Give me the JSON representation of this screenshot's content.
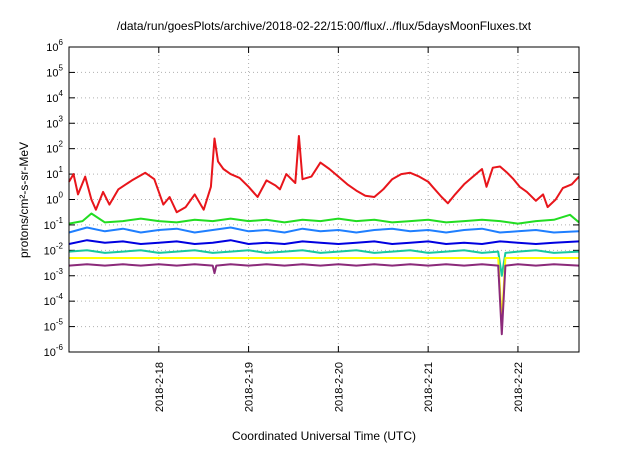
{
  "chart_data": {
    "type": "line",
    "title": "/data/run/goesPlots/archive/2018-02-22/15:00/flux/../flux/5daysMoonFluxes.txt",
    "xlabel": "Coordinated Universal Time (UTC)",
    "ylabel": "protons/cm²-s-sr-MeV",
    "y_scale": "log",
    "ylim_exponents": [
      -6,
      6
    ],
    "ytick_exponents": [
      -6,
      -5,
      -4,
      -3,
      -2,
      -1,
      0,
      1,
      2,
      3,
      4,
      5,
      6
    ],
    "ytick_base": "10",
    "xlim_days": [
      -1.0,
      4.68
    ],
    "x_origin_label": "2018-2-18",
    "xtick_labels": [
      "2018-2-18",
      "2018-2-19",
      "2018-2-20",
      "2018-2-21",
      "2018-2-22"
    ],
    "grid": true,
    "legend": "none",
    "series": [
      {
        "color": "#e8151b",
        "points": [
          [
            -1.0,
            0.7
          ],
          [
            -0.95,
            1.0
          ],
          [
            -0.9,
            0.2
          ],
          [
            -0.82,
            0.9
          ],
          [
            -0.75,
            0.0
          ],
          [
            -0.7,
            -0.4
          ],
          [
            -0.62,
            0.3
          ],
          [
            -0.55,
            -0.2
          ],
          [
            -0.45,
            0.4
          ],
          [
            -0.3,
            0.75
          ],
          [
            -0.15,
            1.05
          ],
          [
            -0.05,
            0.8
          ],
          [
            0.05,
            -0.2
          ],
          [
            0.12,
            0.1
          ],
          [
            0.2,
            -0.5
          ],
          [
            0.3,
            -0.3
          ],
          [
            0.4,
            0.2
          ],
          [
            0.5,
            -0.4
          ],
          [
            0.58,
            0.5
          ],
          [
            0.62,
            2.4
          ],
          [
            0.66,
            1.5
          ],
          [
            0.72,
            1.2
          ],
          [
            0.8,
            1.0
          ],
          [
            0.9,
            0.85
          ],
          [
            1.0,
            0.5
          ],
          [
            1.1,
            0.1
          ],
          [
            1.2,
            0.75
          ],
          [
            1.3,
            0.55
          ],
          [
            1.35,
            0.4
          ],
          [
            1.42,
            1.0
          ],
          [
            1.52,
            0.65
          ],
          [
            1.56,
            2.5
          ],
          [
            1.6,
            0.8
          ],
          [
            1.7,
            0.9
          ],
          [
            1.8,
            1.45
          ],
          [
            1.9,
            1.2
          ],
          [
            2.0,
            0.9
          ],
          [
            2.1,
            0.6
          ],
          [
            2.2,
            0.35
          ],
          [
            2.3,
            0.15
          ],
          [
            2.4,
            0.1
          ],
          [
            2.5,
            0.4
          ],
          [
            2.6,
            0.8
          ],
          [
            2.7,
            1.0
          ],
          [
            2.8,
            1.05
          ],
          [
            2.9,
            0.9
          ],
          [
            3.0,
            0.7
          ],
          [
            3.05,
            0.5
          ],
          [
            3.15,
            0.1
          ],
          [
            3.22,
            -0.15
          ],
          [
            3.3,
            0.2
          ],
          [
            3.4,
            0.6
          ],
          [
            3.5,
            0.9
          ],
          [
            3.6,
            1.2
          ],
          [
            3.65,
            0.5
          ],
          [
            3.72,
            1.25
          ],
          [
            3.8,
            1.3
          ],
          [
            3.88,
            1.05
          ],
          [
            3.95,
            0.8
          ],
          [
            4.02,
            0.5
          ],
          [
            4.1,
            0.3
          ],
          [
            4.2,
            -0.05
          ],
          [
            4.28,
            0.2
          ],
          [
            4.33,
            -0.3
          ],
          [
            4.42,
            0.0
          ],
          [
            4.5,
            0.45
          ],
          [
            4.6,
            0.6
          ],
          [
            4.68,
            0.9
          ]
        ]
      },
      {
        "color": "#22dd22",
        "points": [
          [
            -1.0,
            -0.95
          ],
          [
            -0.85,
            -0.85
          ],
          [
            -0.75,
            -0.55
          ],
          [
            -0.6,
            -0.9
          ],
          [
            -0.4,
            -0.85
          ],
          [
            -0.2,
            -0.75
          ],
          [
            0.0,
            -0.85
          ],
          [
            0.2,
            -0.9
          ],
          [
            0.4,
            -0.8
          ],
          [
            0.6,
            -0.85
          ],
          [
            0.8,
            -0.75
          ],
          [
            1.0,
            -0.85
          ],
          [
            1.2,
            -0.8
          ],
          [
            1.4,
            -0.9
          ],
          [
            1.6,
            -0.8
          ],
          [
            1.8,
            -0.85
          ],
          [
            2.0,
            -0.75
          ],
          [
            2.2,
            -0.85
          ],
          [
            2.4,
            -0.8
          ],
          [
            2.6,
            -0.9
          ],
          [
            2.8,
            -0.85
          ],
          [
            3.0,
            -0.8
          ],
          [
            3.2,
            -0.9
          ],
          [
            3.4,
            -0.85
          ],
          [
            3.6,
            -0.8
          ],
          [
            3.8,
            -0.85
          ],
          [
            4.0,
            -0.95
          ],
          [
            4.2,
            -0.85
          ],
          [
            4.4,
            -0.8
          ],
          [
            4.58,
            -0.6
          ],
          [
            4.68,
            -0.9
          ]
        ]
      },
      {
        "color": "#1f7fff",
        "points": [
          [
            -1.0,
            -1.3
          ],
          [
            -0.8,
            -1.1
          ],
          [
            -0.6,
            -1.25
          ],
          [
            -0.4,
            -1.15
          ],
          [
            -0.2,
            -1.3
          ],
          [
            0.0,
            -1.2
          ],
          [
            0.2,
            -1.15
          ],
          [
            0.4,
            -1.3
          ],
          [
            0.6,
            -1.2
          ],
          [
            0.8,
            -1.1
          ],
          [
            1.0,
            -1.25
          ],
          [
            1.2,
            -1.2
          ],
          [
            1.4,
            -1.3
          ],
          [
            1.6,
            -1.15
          ],
          [
            1.8,
            -1.25
          ],
          [
            2.0,
            -1.2
          ],
          [
            2.2,
            -1.3
          ],
          [
            2.4,
            -1.2
          ],
          [
            2.6,
            -1.15
          ],
          [
            2.8,
            -1.25
          ],
          [
            3.0,
            -1.2
          ],
          [
            3.2,
            -1.3
          ],
          [
            3.4,
            -1.2
          ],
          [
            3.6,
            -1.15
          ],
          [
            3.8,
            -1.3
          ],
          [
            4.0,
            -1.25
          ],
          [
            4.2,
            -1.2
          ],
          [
            4.4,
            -1.3
          ],
          [
            4.68,
            -1.25
          ]
        ]
      },
      {
        "color": "#0000e0",
        "points": [
          [
            -1.0,
            -1.75
          ],
          [
            -0.8,
            -1.6
          ],
          [
            -0.6,
            -1.7
          ],
          [
            -0.4,
            -1.65
          ],
          [
            -0.2,
            -1.75
          ],
          [
            0.0,
            -1.7
          ],
          [
            0.2,
            -1.65
          ],
          [
            0.4,
            -1.75
          ],
          [
            0.6,
            -1.7
          ],
          [
            0.8,
            -1.6
          ],
          [
            1.0,
            -1.75
          ],
          [
            1.2,
            -1.7
          ],
          [
            1.4,
            -1.75
          ],
          [
            1.6,
            -1.65
          ],
          [
            1.8,
            -1.7
          ],
          [
            2.0,
            -1.75
          ],
          [
            2.2,
            -1.7
          ],
          [
            2.4,
            -1.65
          ],
          [
            2.6,
            -1.75
          ],
          [
            2.8,
            -1.7
          ],
          [
            3.0,
            -1.65
          ],
          [
            3.2,
            -1.75
          ],
          [
            3.4,
            -1.7
          ],
          [
            3.6,
            -1.75
          ],
          [
            3.8,
            -1.65
          ],
          [
            4.0,
            -1.7
          ],
          [
            4.2,
            -1.75
          ],
          [
            4.4,
            -1.7
          ],
          [
            4.68,
            -1.65
          ]
        ]
      },
      {
        "color": "#17c9a0",
        "points": [
          [
            -1.0,
            -2.05
          ],
          [
            -0.8,
            -2.0
          ],
          [
            -0.6,
            -2.1
          ],
          [
            -0.4,
            -2.05
          ],
          [
            -0.2,
            -2.0
          ],
          [
            0.0,
            -2.1
          ],
          [
            0.2,
            -2.05
          ],
          [
            0.4,
            -2.0
          ],
          [
            0.6,
            -2.1
          ],
          [
            0.8,
            -2.05
          ],
          [
            1.0,
            -2.0
          ],
          [
            1.2,
            -2.1
          ],
          [
            1.4,
            -2.05
          ],
          [
            1.6,
            -2.0
          ],
          [
            1.8,
            -2.1
          ],
          [
            2.0,
            -2.05
          ],
          [
            2.2,
            -2.0
          ],
          [
            2.4,
            -2.1
          ],
          [
            2.6,
            -2.05
          ],
          [
            2.8,
            -2.0
          ],
          [
            3.0,
            -2.1
          ],
          [
            3.2,
            -2.05
          ],
          [
            3.4,
            -2.0
          ],
          [
            3.6,
            -2.1
          ],
          [
            3.78,
            -2.05
          ],
          [
            3.82,
            -3.0
          ],
          [
            3.86,
            -2.1
          ],
          [
            4.0,
            -2.05
          ],
          [
            4.2,
            -2.0
          ],
          [
            4.4,
            -2.1
          ],
          [
            4.68,
            -2.05
          ]
        ]
      },
      {
        "color": "#ffff00",
        "points": [
          [
            -1.0,
            -2.3
          ],
          [
            0.0,
            -2.3
          ],
          [
            1.0,
            -2.3
          ],
          [
            2.0,
            -2.3
          ],
          [
            3.0,
            -2.3
          ],
          [
            3.78,
            -2.3
          ],
          [
            3.82,
            -4.8
          ],
          [
            3.86,
            -2.3
          ],
          [
            4.68,
            -2.3
          ]
        ]
      },
      {
        "color": "#8b2a7a",
        "points": [
          [
            -1.0,
            -2.6
          ],
          [
            -0.8,
            -2.55
          ],
          [
            -0.6,
            -2.6
          ],
          [
            -0.4,
            -2.55
          ],
          [
            -0.2,
            -2.6
          ],
          [
            0.0,
            -2.55
          ],
          [
            0.2,
            -2.6
          ],
          [
            0.4,
            -2.55
          ],
          [
            0.6,
            -2.6
          ],
          [
            0.62,
            -2.9
          ],
          [
            0.64,
            -2.6
          ],
          [
            0.8,
            -2.55
          ],
          [
            1.0,
            -2.6
          ],
          [
            1.2,
            -2.55
          ],
          [
            1.4,
            -2.6
          ],
          [
            1.6,
            -2.55
          ],
          [
            1.8,
            -2.6
          ],
          [
            2.0,
            -2.55
          ],
          [
            2.2,
            -2.6
          ],
          [
            2.4,
            -2.55
          ],
          [
            2.6,
            -2.6
          ],
          [
            2.8,
            -2.55
          ],
          [
            3.0,
            -2.6
          ],
          [
            3.2,
            -2.55
          ],
          [
            3.4,
            -2.6
          ],
          [
            3.6,
            -2.55
          ],
          [
            3.78,
            -2.6
          ],
          [
            3.82,
            -5.3
          ],
          [
            3.86,
            -2.6
          ],
          [
            4.0,
            -2.55
          ],
          [
            4.2,
            -2.6
          ],
          [
            4.4,
            -2.55
          ],
          [
            4.68,
            -2.6
          ]
        ]
      }
    ]
  }
}
